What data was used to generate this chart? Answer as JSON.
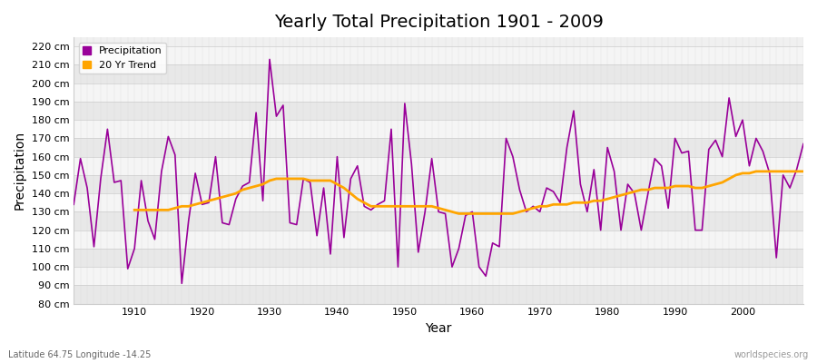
{
  "title": "Yearly Total Precipitation 1901 - 2009",
  "xlabel": "Year",
  "ylabel": "Precipitation",
  "subtitle": "Latitude 64.75 Longitude -14.25",
  "watermark": "worldspecies.org",
  "bg_color": "#ffffff",
  "plot_bg_color": "#f0f0f0",
  "band_colors": [
    "#e8e8e8",
    "#f5f5f5"
  ],
  "precip_color": "#990099",
  "trend_color": "#FFA500",
  "ylim": [
    80,
    225
  ],
  "yticks": [
    80,
    90,
    100,
    110,
    120,
    130,
    140,
    150,
    160,
    170,
    180,
    190,
    200,
    210,
    220
  ],
  "years": [
    1901,
    1902,
    1903,
    1904,
    1905,
    1906,
    1907,
    1908,
    1909,
    1910,
    1911,
    1912,
    1913,
    1914,
    1915,
    1916,
    1917,
    1918,
    1919,
    1920,
    1921,
    1922,
    1923,
    1924,
    1925,
    1926,
    1927,
    1928,
    1929,
    1930,
    1931,
    1932,
    1933,
    1934,
    1935,
    1936,
    1937,
    1938,
    1939,
    1940,
    1941,
    1942,
    1943,
    1944,
    1945,
    1946,
    1947,
    1948,
    1949,
    1950,
    1951,
    1952,
    1953,
    1954,
    1955,
    1956,
    1957,
    1958,
    1959,
    1960,
    1961,
    1962,
    1963,
    1964,
    1965,
    1966,
    1967,
    1968,
    1969,
    1970,
    1971,
    1972,
    1973,
    1974,
    1975,
    1976,
    1977,
    1978,
    1979,
    1980,
    1981,
    1982,
    1983,
    1984,
    1985,
    1986,
    1987,
    1988,
    1989,
    1990,
    1991,
    1992,
    1993,
    1994,
    1995,
    1996,
    1997,
    1998,
    1999,
    2000,
    2001,
    2002,
    2003,
    2004,
    2005,
    2006,
    2007,
    2008,
    2009
  ],
  "precip": [
    134,
    159,
    143,
    111,
    148,
    175,
    146,
    147,
    99,
    110,
    147,
    125,
    115,
    152,
    171,
    161,
    91,
    125,
    151,
    134,
    135,
    160,
    124,
    123,
    137,
    144,
    146,
    184,
    136,
    213,
    182,
    188,
    124,
    123,
    148,
    146,
    117,
    143,
    107,
    160,
    116,
    148,
    155,
    133,
    131,
    134,
    136,
    175,
    100,
    189,
    156,
    108,
    130,
    159,
    130,
    129,
    100,
    110,
    128,
    130,
    100,
    95,
    113,
    111,
    170,
    160,
    142,
    130,
    133,
    130,
    143,
    141,
    135,
    165,
    185,
    145,
    130,
    153,
    120,
    165,
    152,
    120,
    145,
    140,
    120,
    140,
    159,
    155,
    132,
    170,
    162,
    163,
    120,
    120,
    164,
    169,
    160,
    192,
    171,
    180,
    155,
    170,
    163,
    151,
    105,
    150,
    143,
    153,
    167
  ],
  "trend_years": [
    1910,
    1911,
    1912,
    1913,
    1914,
    1915,
    1916,
    1917,
    1918,
    1919,
    1920,
    1921,
    1922,
    1923,
    1924,
    1925,
    1926,
    1927,
    1928,
    1929,
    1930,
    1931,
    1932,
    1933,
    1934,
    1935,
    1936,
    1937,
    1938,
    1939,
    1940,
    1941,
    1942,
    1943,
    1944,
    1945,
    1946,
    1947,
    1948,
    1949,
    1950,
    1951,
    1952,
    1953,
    1954,
    1955,
    1956,
    1957,
    1958,
    1959,
    1960,
    1961,
    1962,
    1963,
    1964,
    1965,
    1966,
    1967,
    1968,
    1969,
    1970,
    1971,
    1972,
    1973,
    1974,
    1975,
    1976,
    1977,
    1978,
    1979,
    1980,
    1981,
    1982,
    1983,
    1984,
    1985,
    1986,
    1987,
    1988,
    1989,
    1990,
    1991,
    1992,
    1993,
    1994,
    1995,
    1996,
    1997,
    1998,
    1999,
    2000,
    2001,
    2002,
    2003,
    2004,
    2005,
    2006,
    2007,
    2008,
    2009
  ],
  "trend": [
    131,
    131,
    131,
    131,
    131,
    131,
    132,
    133,
    133,
    134,
    135,
    136,
    137,
    138,
    139,
    140,
    142,
    143,
    144,
    145,
    147,
    148,
    148,
    148,
    148,
    148,
    147,
    147,
    147,
    147,
    145,
    143,
    140,
    137,
    135,
    133,
    133,
    133,
    133,
    133,
    133,
    133,
    133,
    133,
    133,
    132,
    131,
    130,
    129,
    129,
    129,
    129,
    129,
    129,
    129,
    129,
    129,
    130,
    131,
    132,
    133,
    133,
    134,
    134,
    134,
    135,
    135,
    135,
    136,
    136,
    137,
    138,
    139,
    140,
    141,
    142,
    142,
    143,
    143,
    143,
    144,
    144,
    144,
    143,
    143,
    144,
    145,
    146,
    148,
    150,
    151,
    151,
    152,
    152,
    152,
    152,
    152,
    152,
    152,
    152
  ]
}
